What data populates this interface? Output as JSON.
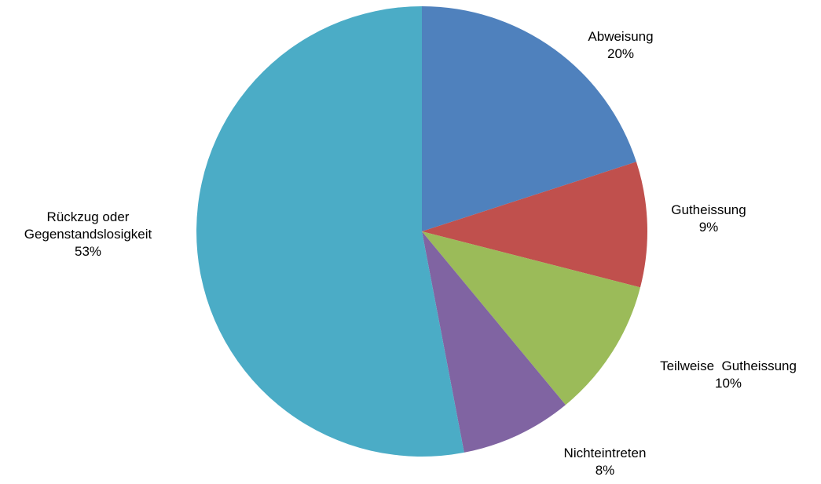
{
  "chart_data": {
    "type": "pie",
    "title": "",
    "start_angle_deg": 0,
    "direction": "clockwise",
    "slices": [
      {
        "label": "Abweisung",
        "percent_label": "20%",
        "value": 20,
        "color": "#4F81BD"
      },
      {
        "label": "Gutheissung",
        "percent_label": "9%",
        "value": 9,
        "color": "#C0504D"
      },
      {
        "label": "Teilweise  Gutheissung",
        "percent_label": "10%",
        "value": 10,
        "color": "#9BBB59"
      },
      {
        "label": "Nichteintreten",
        "percent_label": "8%",
        "value": 8,
        "color": "#8064A2"
      },
      {
        "label": "Rückzug oder Gegenstandslosigkeit",
        "label_lines": [
          "Rückzug oder",
          "Gegenstandslosigkeit"
        ],
        "percent_label": "53%",
        "value": 53,
        "color": "#4BACC6"
      }
    ],
    "legend": "none",
    "data_labels": "outside"
  }
}
